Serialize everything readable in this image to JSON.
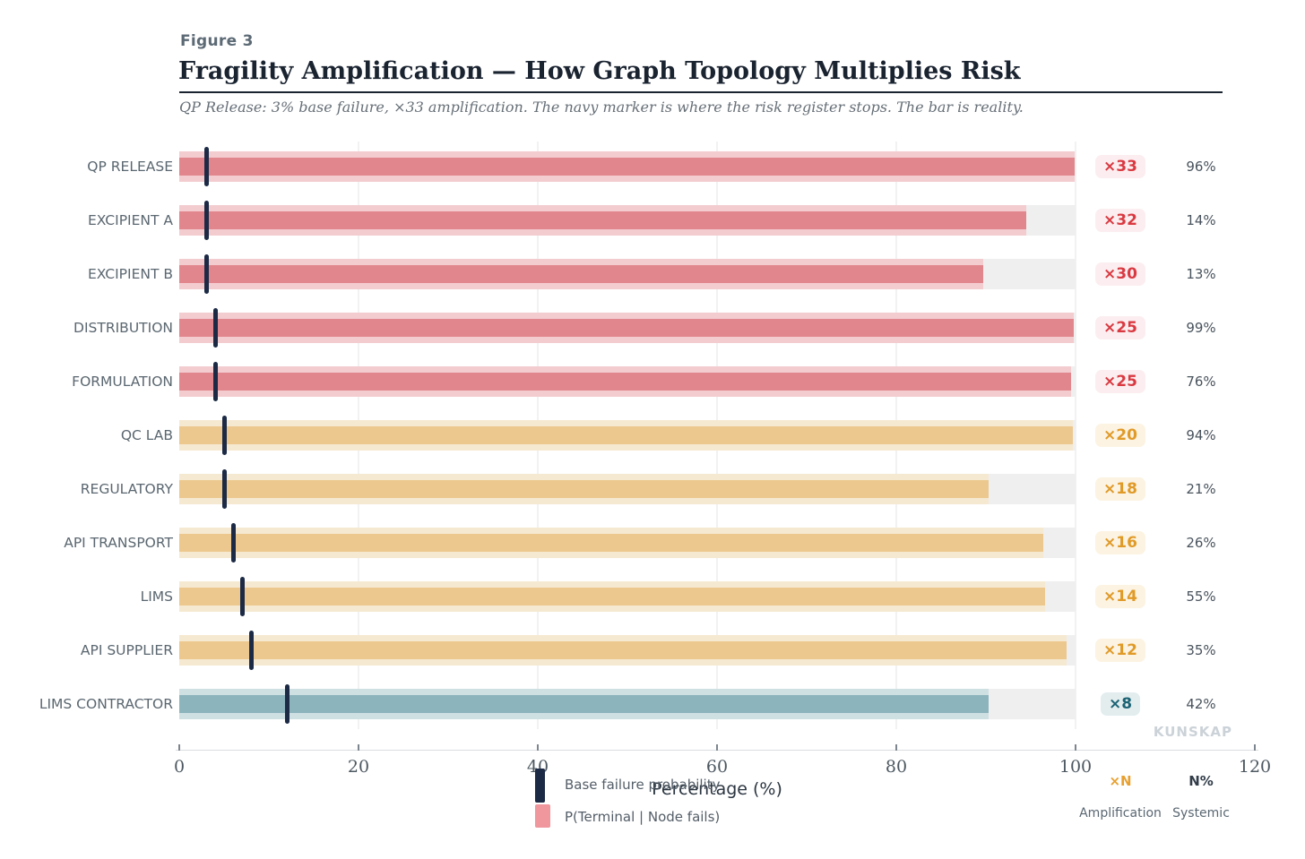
{
  "figure": {
    "eyebrow": "Figure 3",
    "title": "Fragility Amplification — How Graph Topology Multiplies Risk",
    "subtitle": "QP Release: 3% base failure, ×33 amplification. The navy marker is where the risk register stops. The bar is reality."
  },
  "axis": {
    "label": "Percentage (%)",
    "ticks": [
      0,
      20,
      40,
      60,
      80,
      100,
      120
    ],
    "gridlines": [
      20,
      40,
      60,
      80,
      100
    ],
    "min": 0,
    "max": 120,
    "track_max": 100
  },
  "legend": [
    {
      "swatch": "navy-bar-swatch",
      "label": "Base failure probability"
    },
    {
      "swatch": "pink-square-swatch",
      "label": "P(Terminal | Node fails)"
    }
  ],
  "footer_columns": {
    "amplification": {
      "symbol": "×N",
      "label": "Amplification"
    },
    "systemic": {
      "symbol": "N%",
      "label": "Systemic"
    }
  },
  "watermark": "KUNSKAP",
  "colors": {
    "track": "#efefef",
    "marker_navy": "#1c2a45",
    "legend_pink": "#f0969d",
    "amp_symbol_orange": "#e8a02f",
    "sys_symbol_dark": "#323d49",
    "tiers": {
      "red": {
        "bar": "#e2868d",
        "halo": "#f3ccd0",
        "badge_text": "#d93a42",
        "badge_bg": "#fceef0"
      },
      "orange": {
        "bar": "#ecc88f",
        "halo": "#f6e9d1",
        "badge_text": "#e09a28",
        "badge_bg": "#fcf3e2"
      },
      "teal": {
        "bar": "#8cb4bd",
        "halo": "#cfe0e3",
        "badge_text": "#1c6374",
        "badge_bg": "#e3edee"
      }
    }
  },
  "rows": [
    {
      "label": "QP RELEASE",
      "base_failure_pct": 3,
      "p_terminal_pct": 99.9,
      "amplification_label": "×33",
      "systemic_label": "96%",
      "tier": "red"
    },
    {
      "label": "EXCIPIENT A",
      "base_failure_pct": 3,
      "p_terminal_pct": 94.5,
      "amplification_label": "×32",
      "systemic_label": "14%",
      "tier": "red"
    },
    {
      "label": "EXCIPIENT B",
      "base_failure_pct": 3,
      "p_terminal_pct": 89.7,
      "amplification_label": "×30",
      "systemic_label": "13%",
      "tier": "red"
    },
    {
      "label": "DISTRIBUTION",
      "base_failure_pct": 4,
      "p_terminal_pct": 99.8,
      "amplification_label": "×25",
      "systemic_label": "99%",
      "tier": "red"
    },
    {
      "label": "FORMULATION",
      "base_failure_pct": 4,
      "p_terminal_pct": 99.5,
      "amplification_label": "×25",
      "systemic_label": "76%",
      "tier": "red"
    },
    {
      "label": "QC LAB",
      "base_failure_pct": 5,
      "p_terminal_pct": 99.7,
      "amplification_label": "×20",
      "systemic_label": "94%",
      "tier": "orange"
    },
    {
      "label": "REGULATORY",
      "base_failure_pct": 5,
      "p_terminal_pct": 90.3,
      "amplification_label": "×18",
      "systemic_label": "21%",
      "tier": "orange"
    },
    {
      "label": "API TRANSPORT",
      "base_failure_pct": 6,
      "p_terminal_pct": 96.4,
      "amplification_label": "×16",
      "systemic_label": "26%",
      "tier": "orange"
    },
    {
      "label": "LIMS",
      "base_failure_pct": 7,
      "p_terminal_pct": 96.6,
      "amplification_label": "×14",
      "systemic_label": "55%",
      "tier": "orange"
    },
    {
      "label": "API SUPPLIER",
      "base_failure_pct": 8,
      "p_terminal_pct": 99.0,
      "amplification_label": "×12",
      "systemic_label": "35%",
      "tier": "orange"
    },
    {
      "label": "LIMS CONTRACTOR",
      "base_failure_pct": 12,
      "p_terminal_pct": 90.3,
      "amplification_label": "×8",
      "systemic_label": "42%",
      "tier": "teal"
    }
  ],
  "chart_data": {
    "type": "bar",
    "orientation": "horizontal",
    "title": "Fragility Amplification — How Graph Topology Multiplies Risk",
    "xlabel": "Percentage (%)",
    "ylabel": "",
    "xlim": [
      0,
      120
    ],
    "grid": true,
    "legend_position": "bottom",
    "categories": [
      "QP RELEASE",
      "EXCIPIENT A",
      "EXCIPIENT B",
      "DISTRIBUTION",
      "FORMULATION",
      "QC LAB",
      "REGULATORY",
      "API TRANSPORT",
      "LIMS",
      "API SUPPLIER",
      "LIMS CONTRACTOR"
    ],
    "series": [
      {
        "name": "Base failure probability",
        "style": "marker",
        "values": [
          3,
          3,
          3,
          4,
          4,
          5,
          5,
          6,
          7,
          8,
          12
        ]
      },
      {
        "name": "P(Terminal | Node fails)",
        "style": "bar",
        "values": [
          99.9,
          94.5,
          89.7,
          99.8,
          99.5,
          99.7,
          90.3,
          96.4,
          96.6,
          99.0,
          90.3
        ]
      }
    ],
    "amplification_factors": [
      33,
      32,
      30,
      25,
      25,
      20,
      18,
      16,
      14,
      12,
      8
    ],
    "systemic_pct": [
      96,
      14,
      13,
      99,
      76,
      94,
      21,
      26,
      55,
      35,
      42
    ]
  }
}
